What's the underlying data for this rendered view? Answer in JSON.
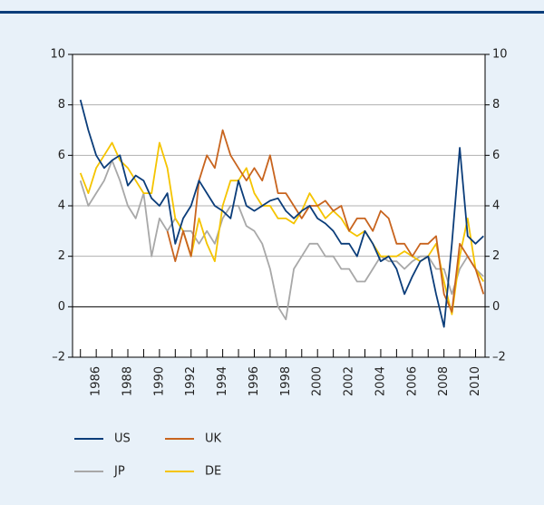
{
  "chart_data": {
    "type": "line",
    "x": [
      1985,
      1985.5,
      1986,
      1986.5,
      1987,
      1987.5,
      1988,
      1988.5,
      1989,
      1989.5,
      1990,
      1990.5,
      1991,
      1991.5,
      1992,
      1992.5,
      1993,
      1993.5,
      1994,
      1994.5,
      1995,
      1995.5,
      1996,
      1996.5,
      1997,
      1997.5,
      1998,
      1998.5,
      1999,
      1999.5,
      2000,
      2000.5,
      2001,
      2001.5,
      2002,
      2002.5,
      2003,
      2003.5,
      2004,
      2004.5,
      2005,
      2005.5,
      2006,
      2006.5,
      2007,
      2007.5,
      2008,
      2008.5,
      2009,
      2009.5,
      2010,
      2010.5
    ],
    "series": [
      {
        "name": "US",
        "color": "#0b3d7a",
        "values": [
          8.2,
          7.0,
          6.0,
          5.5,
          5.8,
          6.0,
          4.8,
          5.2,
          5.0,
          4.3,
          4.0,
          4.5,
          2.5,
          3.5,
          4.0,
          5.0,
          4.5,
          4.0,
          3.8,
          3.5,
          5.0,
          4.0,
          3.8,
          4.0,
          4.2,
          4.3,
          3.8,
          3.5,
          3.8,
          4.0,
          3.5,
          3.3,
          3.0,
          2.5,
          2.5,
          2.0,
          3.0,
          2.5,
          1.8,
          2.0,
          1.5,
          0.5,
          1.2,
          1.8,
          2.0,
          0.5,
          -0.8,
          2.5,
          6.3,
          2.8,
          2.5,
          2.8
        ]
      },
      {
        "name": "UK",
        "color": "#c8641e",
        "values": [
          null,
          null,
          null,
          null,
          null,
          null,
          null,
          null,
          null,
          null,
          null,
          3.0,
          1.8,
          3.0,
          2.0,
          5.0,
          6.0,
          5.5,
          7.0,
          6.0,
          5.5,
          5.0,
          5.5,
          5.0,
          6.0,
          4.5,
          4.5,
          4.0,
          3.5,
          4.0,
          4.0,
          4.2,
          3.8,
          4.0,
          3.0,
          3.5,
          3.5,
          3.0,
          3.8,
          3.5,
          2.5,
          2.5,
          2.0,
          2.5,
          2.5,
          2.8,
          0.5,
          -0.2,
          2.5,
          2.0,
          1.5,
          0.5
        ]
      },
      {
        "name": "JP",
        "color": "#a8a8a8",
        "values": [
          5.0,
          4.0,
          4.5,
          5.0,
          5.8,
          5.0,
          4.0,
          3.5,
          4.5,
          2.0,
          3.5,
          3.0,
          3.5,
          3.0,
          3.0,
          2.5,
          3.0,
          2.5,
          3.5,
          4.0,
          4.0,
          3.2,
          3.0,
          2.5,
          1.5,
          0.0,
          -0.5,
          1.5,
          2.0,
          2.5,
          2.5,
          2.0,
          2.0,
          1.5,
          1.5,
          1.0,
          1.0,
          1.5,
          2.0,
          1.8,
          1.8,
          1.5,
          1.8,
          2.0,
          2.0,
          1.5,
          1.5,
          0.5,
          1.5,
          2.0,
          1.5,
          1.2
        ]
      },
      {
        "name": "DE",
        "color": "#f5c400",
        "values": [
          5.3,
          4.5,
          5.5,
          6.0,
          6.5,
          5.8,
          5.5,
          5.0,
          4.5,
          4.5,
          6.5,
          5.5,
          3.5,
          3.0,
          2.0,
          3.5,
          2.5,
          1.8,
          4.0,
          5.0,
          5.0,
          5.5,
          4.5,
          4.0,
          4.0,
          3.5,
          3.5,
          3.3,
          3.8,
          4.5,
          4.0,
          3.5,
          3.8,
          3.5,
          3.0,
          2.8,
          3.0,
          2.5,
          2.0,
          2.0,
          2.0,
          2.2,
          2.0,
          1.8,
          2.0,
          2.5,
          1.0,
          -0.3,
          2.0,
          3.5,
          1.5,
          1.0
        ]
      }
    ],
    "xlim": [
      1984.5,
      2010.6
    ],
    "xticks": [
      1986,
      1988,
      1990,
      1992,
      1994,
      1996,
      1998,
      2000,
      2002,
      2004,
      2006,
      2008,
      2010
    ],
    "xminorticks": [
      1985,
      1987,
      1989,
      1991,
      1993,
      1995,
      1997,
      1999,
      2001,
      2003,
      2005,
      2007,
      2009
    ],
    "ylim": [
      -2,
      10
    ],
    "yticks": [
      {
        "value": -2,
        "label": "–2"
      },
      0,
      2,
      4,
      6,
      8,
      10
    ],
    "y2lim": [
      -2,
      10
    ],
    "y2ticks": [
      {
        "value": -2,
        "label": "–2"
      },
      0,
      2,
      4,
      6,
      8,
      10
    ],
    "grid": true
  }
}
